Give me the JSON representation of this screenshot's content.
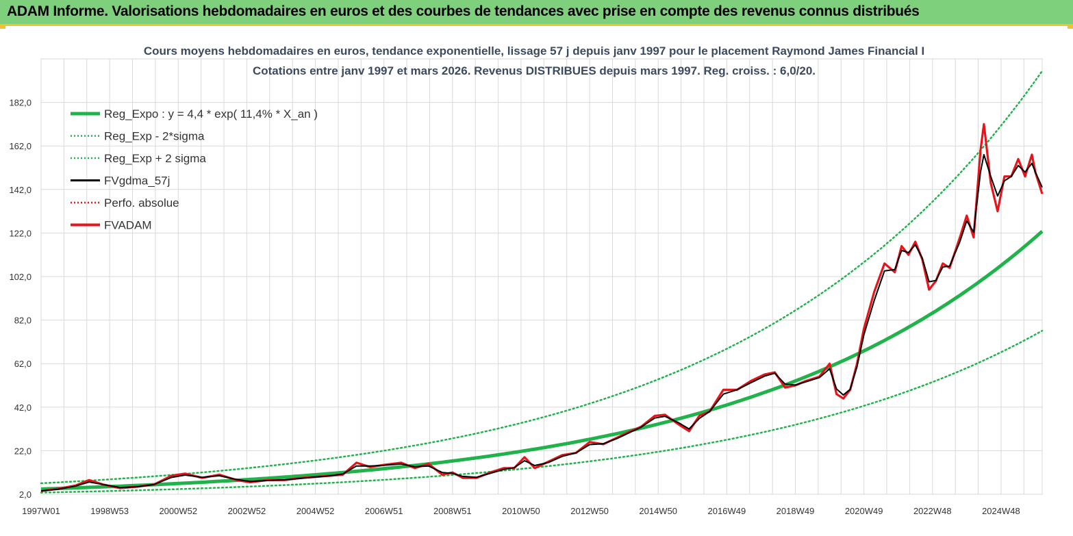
{
  "banner": {
    "title": "ADAM Informe. Valorisations hebdomadaires en euros et des courbes de tendances avec prise en compte des revenus connus distribués"
  },
  "colors": {
    "banner_bg": "#7ed07c",
    "banner_border": "#f2c230",
    "reg_expo": "#21b24b",
    "fvgdma": "#000000",
    "fvadam": "#e8141b",
    "grid": "#d9d9d9"
  },
  "chart_data": {
    "type": "line",
    "title": "Cours moyens hebdomadaires en euros, tendance exponentielle, lissage 57 j depuis janv 1997  pour le placement Raymond James Financial I",
    "subtitle": "Cotations entre janv 1997 et mars 2026. Revenus DISTRIBUES depuis mars 1997. Reg. croiss. : 6,0/20.",
    "xlabel": "",
    "ylabel": "",
    "ylim": [
      2,
      202
    ],
    "xlim": [
      1997.0,
      2026.2
    ],
    "grid": true,
    "legend_position": "top-left",
    "y_ticks": [
      "2,0",
      "22,0",
      "42,0",
      "62,0",
      "82,0",
      "102,0",
      "122,0",
      "142,0",
      "162,0",
      "182,0"
    ],
    "x_ticks": [
      "1997W01",
      "1998W53",
      "2000W52",
      "2002W52",
      "2004W52",
      "2006W51",
      "2008W51",
      "2010W50",
      "2012W50",
      "2014W50",
      "2016W49",
      "2018W49",
      "2020W49",
      "2022W48",
      "2024W48"
    ],
    "x_tick_years": [
      1997.0,
      1999.0,
      2001.0,
      2003.0,
      2005.0,
      2007.0,
      2009.0,
      2011.0,
      2013.0,
      2015.0,
      2017.0,
      2019.0,
      2021.0,
      2023.0,
      2025.0
    ],
    "legend": [
      {
        "key": "reg_expo",
        "label": "Reg_Expo : y = 4,4 * exp( 11,4% *  X_an )",
        "style": "solid-thick",
        "color": "#21b24b"
      },
      {
        "key": "reg_minus",
        "label": "Reg_Exp - 2*sigma",
        "style": "dotted",
        "color": "#21b24b"
      },
      {
        "key": "reg_plus",
        "label": "Reg_Exp + 2 sigma",
        "style": "dotted",
        "color": "#21b24b"
      },
      {
        "key": "fvgdma",
        "label": "FVgdma_57j",
        "style": "solid",
        "color": "#000000"
      },
      {
        "key": "perfo",
        "label": "Perfo. absolue",
        "style": "dotted",
        "color": "#e8141b"
      },
      {
        "key": "fvadam",
        "label": "FVADAM",
        "style": "solid-thick",
        "color": "#e8141b"
      }
    ],
    "regression": {
      "a": 4.4,
      "rate": 0.114,
      "minus_factor": 0.628,
      "plus_factor": 1.6
    },
    "series": [
      {
        "name": "FVADAM",
        "x": [
          1997.0,
          1997.5,
          1998.0,
          1998.4,
          1998.8,
          1999.3,
          1999.8,
          2000.3,
          2000.8,
          2001.2,
          2001.7,
          2002.2,
          2002.7,
          2003.1,
          2003.6,
          2004.1,
          2004.6,
          2005.0,
          2005.4,
          2005.8,
          2006.2,
          2006.6,
          2007.0,
          2007.5,
          2007.9,
          2008.3,
          2008.7,
          2009.0,
          2009.3,
          2009.7,
          2010.1,
          2010.5,
          2010.8,
          2011.1,
          2011.4,
          2011.8,
          2012.2,
          2012.6,
          2013.0,
          2013.4,
          2013.8,
          2014.2,
          2014.5,
          2014.9,
          2015.2,
          2015.6,
          2015.9,
          2016.2,
          2016.5,
          2016.9,
          2017.3,
          2017.7,
          2018.1,
          2018.4,
          2018.7,
          2019.0,
          2019.3,
          2019.7,
          2020.0,
          2020.2,
          2020.4,
          2020.6,
          2020.8,
          2021.0,
          2021.3,
          2021.6,
          2021.9,
          2022.1,
          2022.3,
          2022.5,
          2022.7,
          2022.9,
          2023.1,
          2023.3,
          2023.5,
          2023.8,
          2024.0,
          2024.2,
          2024.4,
          2024.5,
          2024.7,
          2024.9,
          2025.1,
          2025.3,
          2025.5,
          2025.7,
          2025.9,
          2026.0,
          2026.2
        ],
        "values": [
          3.5,
          4.5,
          6.0,
          8.5,
          6.5,
          4.8,
          5.5,
          6.5,
          10.5,
          11.5,
          9.5,
          11.0,
          8.5,
          7.5,
          8.5,
          8.5,
          9.5,
          10.0,
          10.5,
          11.0,
          16.5,
          14.5,
          15.5,
          16.5,
          14.0,
          16.0,
          11.0,
          12.0,
          9.5,
          9.5,
          12.0,
          14.0,
          14.0,
          19.0,
          14.0,
          17.0,
          20.0,
          21.0,
          26.0,
          25.0,
          28.0,
          31.0,
          33.0,
          38.0,
          38.5,
          34.0,
          31.0,
          38.0,
          40.0,
          50.0,
          50.0,
          54.0,
          57.0,
          58.0,
          51.0,
          52.0,
          54.0,
          56.0,
          62.0,
          48.0,
          46.0,
          50.0,
          62.0,
          78.0,
          95.0,
          108.0,
          104.0,
          116.0,
          112.0,
          118.0,
          110.0,
          96.0,
          100.0,
          108.0,
          106.0,
          120.0,
          130.0,
          120.0,
          160.0,
          172.0,
          145.0,
          132.0,
          148.0,
          148.0,
          156.0,
          148.0,
          158.0,
          150.0,
          140.0
        ]
      },
      {
        "name": "FVgdma_57j",
        "x": [
          1997.0,
          1997.5,
          1998.0,
          1998.4,
          1998.8,
          1999.3,
          1999.8,
          2000.3,
          2000.8,
          2001.2,
          2001.7,
          2002.2,
          2002.7,
          2003.1,
          2003.6,
          2004.1,
          2004.6,
          2005.0,
          2005.4,
          2005.8,
          2006.2,
          2006.6,
          2007.0,
          2007.5,
          2007.9,
          2008.3,
          2008.7,
          2009.0,
          2009.3,
          2009.7,
          2010.1,
          2010.5,
          2010.8,
          2011.1,
          2011.4,
          2011.8,
          2012.2,
          2012.6,
          2013.0,
          2013.4,
          2013.8,
          2014.2,
          2014.5,
          2014.9,
          2015.2,
          2015.6,
          2015.9,
          2016.2,
          2016.5,
          2016.9,
          2017.3,
          2017.7,
          2018.1,
          2018.4,
          2018.7,
          2019.0,
          2019.3,
          2019.7,
          2020.0,
          2020.2,
          2020.4,
          2020.6,
          2020.8,
          2021.0,
          2021.3,
          2021.6,
          2021.9,
          2022.1,
          2022.3,
          2022.5,
          2022.7,
          2022.9,
          2023.1,
          2023.3,
          2023.5,
          2023.8,
          2024.0,
          2024.2,
          2024.4,
          2024.5,
          2024.7,
          2024.9,
          2025.1,
          2025.3,
          2025.5,
          2025.7,
          2025.9,
          2026.0,
          2026.2
        ],
        "values": [
          3.5,
          4.3,
          5.7,
          7.6,
          6.5,
          5.1,
          5.4,
          6.5,
          9.7,
          10.8,
          9.8,
          10.5,
          8.8,
          7.9,
          8.3,
          8.6,
          9.3,
          9.9,
          10.4,
          11.3,
          15.0,
          15.0,
          15.3,
          15.9,
          14.6,
          15.0,
          12.0,
          11.6,
          10.2,
          9.8,
          11.6,
          13.4,
          14.2,
          17.4,
          15.2,
          16.6,
          19.4,
          21.0,
          24.8,
          25.2,
          27.6,
          30.6,
          32.8,
          37.0,
          37.8,
          34.8,
          32.0,
          36.8,
          40.0,
          48.0,
          50.0,
          53.2,
          56.2,
          57.6,
          52.6,
          52.2,
          53.6,
          55.6,
          59.6,
          50.4,
          47.6,
          50.2,
          60.6,
          75.2,
          91.0,
          104.6,
          105.2,
          114.0,
          113.0,
          116.6,
          110.6,
          99.6,
          100.2,
          106.4,
          106.8,
          118.0,
          127.6,
          122.4,
          150.0,
          158.0,
          148.0,
          139.0,
          146.0,
          148.0,
          153.0,
          150.0,
          154.0,
          150.0,
          143.0
        ]
      }
    ]
  }
}
